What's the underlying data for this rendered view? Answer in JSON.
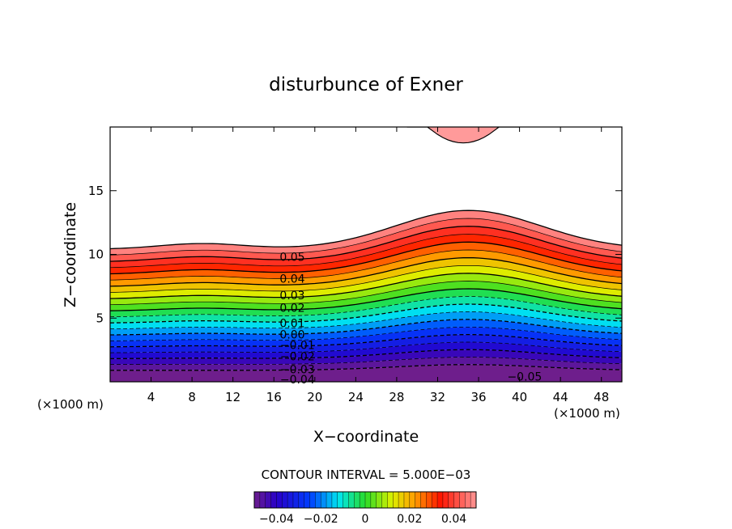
{
  "chart_data": {
    "type": "contour",
    "title": "disturbunce of Exner",
    "xlabel": "X−coordinate",
    "ylabel": "Z−coordinate",
    "x_unit_left": "(×1000 m)",
    "x_unit_right": "(×1000 m)",
    "xlim": [
      0,
      50
    ],
    "ylim": [
      0,
      20
    ],
    "x_ticks": [
      4,
      8,
      12,
      16,
      20,
      24,
      28,
      32,
      36,
      40,
      44,
      48
    ],
    "y_ticks": [
      5,
      10,
      15
    ],
    "x_tick_labels": [
      "4",
      "8",
      "12",
      "16",
      "20",
      "24",
      "28",
      "32",
      "36",
      "40",
      "44",
      "48"
    ],
    "y_tick_labels": [
      "5",
      "10",
      "15"
    ],
    "contour_interval_text": "CONTOUR INTERVAL = 5.000E−03",
    "contour_interval": 0.005,
    "level_min": -0.05,
    "level_max": 0.05,
    "colorbar_range": [
      -0.05,
      0.05
    ],
    "colorbar_tick_values": [
      -0.04,
      -0.02,
      0,
      0.02,
      0.04
    ],
    "colorbar_tick_labels": [
      "−0.04",
      "−0.02",
      "0",
      "0.02",
      "0.04"
    ],
    "contour_labels": [
      {
        "text": "0.05",
        "x": 17.8,
        "y": 9.8
      },
      {
        "text": "0.04",
        "x": 17.8,
        "y": 8.1
      },
      {
        "text": "0.03",
        "x": 17.8,
        "y": 6.8
      },
      {
        "text": "0.02",
        "x": 17.8,
        "y": 5.8
      },
      {
        "text": "0.01",
        "x": 17.8,
        "y": 4.6
      },
      {
        "text": "0.00",
        "x": 17.8,
        "y": 3.7
      },
      {
        "text": "−0.01",
        "x": 18.3,
        "y": 2.9
      },
      {
        "text": "−0.02",
        "x": 18.3,
        "y": 2.0
      },
      {
        "text": "−0.03",
        "x": 18.3,
        "y": 1.0
      },
      {
        "text": "−0.04",
        "x": 18.3,
        "y": 0.2
      },
      {
        "text": "−0.05",
        "x": 40.5,
        "y": 0.4
      }
    ]
  }
}
